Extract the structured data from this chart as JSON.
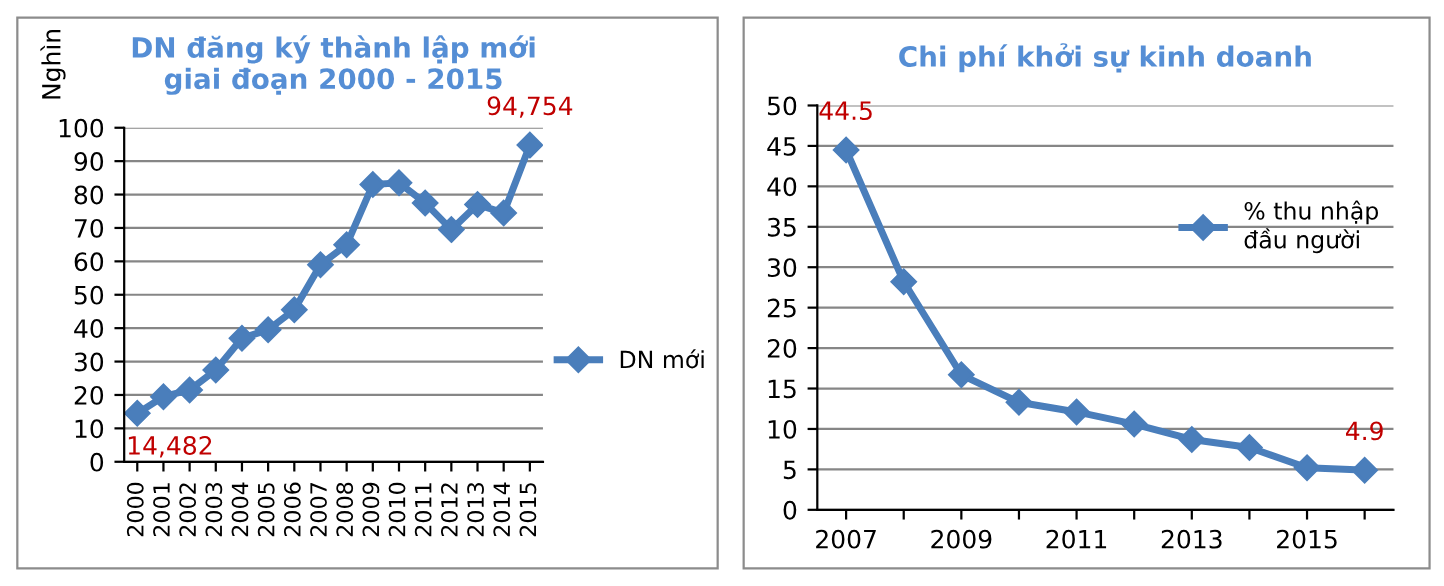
{
  "chart_data": [
    {
      "type": "line",
      "title": "DN đăng ký thành lập mới\ngiai đoạn 2000 - 2015",
      "ylabel": "Nghìn",
      "categories": [
        "2000",
        "2001",
        "2002",
        "2003",
        "2004",
        "2005",
        "2006",
        "2007",
        "2008",
        "2009",
        "2010",
        "2011",
        "2012",
        "2013",
        "2014",
        "2015"
      ],
      "series": [
        {
          "name": "DN mới",
          "color": "#4a7ebb",
          "values": [
            14.5,
            19.5,
            21.5,
            27.5,
            37,
            39.5,
            45.5,
            59,
            65,
            83,
            83.5,
            77.5,
            69.5,
            77,
            74.5,
            94.8
          ]
        }
      ],
      "annotations": [
        {
          "text": "14,482",
          "x": "2000",
          "y": 14.5
        },
        {
          "text": "94,754",
          "x": "2015",
          "y": 94.8
        }
      ],
      "ylim": [
        0,
        100
      ],
      "yticks": [
        0,
        10,
        20,
        30,
        40,
        50,
        60,
        70,
        80,
        90,
        100
      ],
      "grid": "y",
      "legend": "right",
      "marker": "diamond",
      "line_style": "solid"
    },
    {
      "type": "line",
      "title": "Chi phí khởi sự kinh doanh",
      "categories": [
        "2007",
        null,
        "2009",
        null,
        "2011",
        null,
        "2013",
        null,
        "2015",
        null
      ],
      "series": [
        {
          "name": "% thu nhập\nđầu người",
          "color": "#4a7ebb",
          "values": [
            44.5,
            28.2,
            16.7,
            13.3,
            12.1,
            10.6,
            8.7,
            7.7,
            5.2,
            4.9
          ],
          "value_labels": [
            "44.5",
            null,
            null,
            null,
            null,
            null,
            null,
            null,
            null,
            "4.9"
          ]
        }
      ],
      "ylim": [
        0,
        50
      ],
      "yticks": [
        0,
        5,
        10,
        15,
        20,
        25,
        30,
        35,
        40,
        45,
        50
      ],
      "grid": "y",
      "legend": "top right",
      "marker": "diamond",
      "line_style": "solid"
    }
  ]
}
